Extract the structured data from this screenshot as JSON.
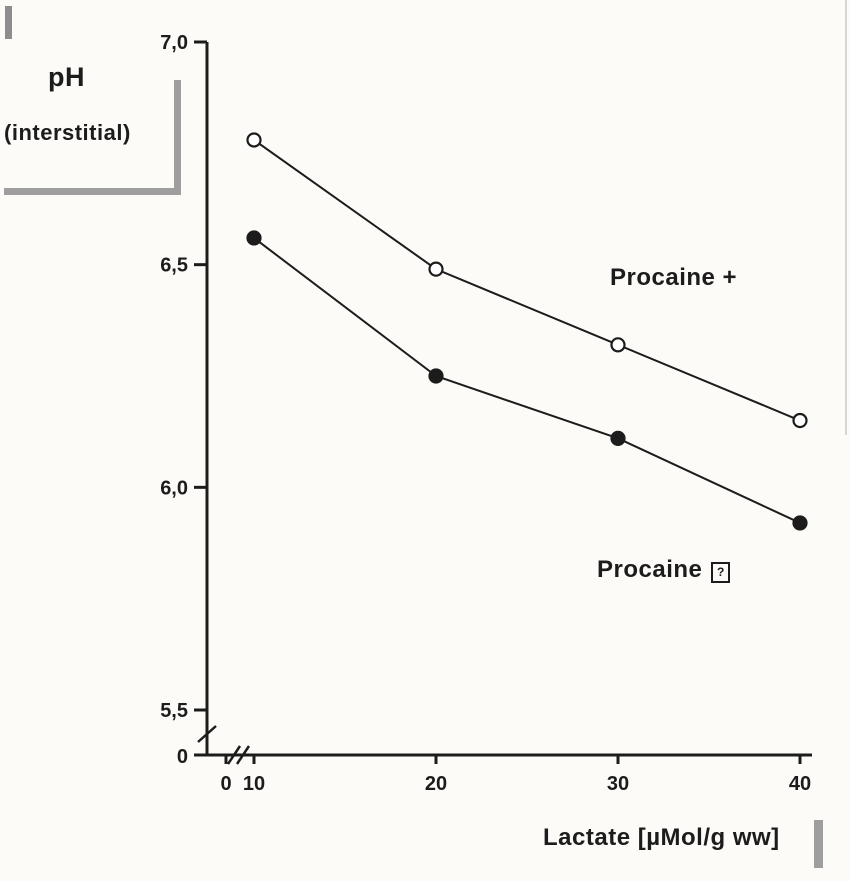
{
  "chart_data": {
    "type": "line",
    "title": "",
    "xlabel": "Lactate [µMol/g ww]",
    "ylabel_line1": "pH",
    "ylabel_line2": "(interstitial)",
    "xlim": [
      10,
      40
    ],
    "ylim": [
      5.5,
      7.0
    ],
    "x_ticks": [
      0,
      10,
      20,
      30,
      40
    ],
    "x_tick_labels": [
      "0",
      "10",
      "20",
      "30",
      "40"
    ],
    "y_ticks": [
      7.0,
      6.5,
      6.0,
      5.5
    ],
    "y_tick_labels": [
      "7,0",
      "6,5",
      "6,0",
      "5,5"
    ],
    "y_zero_label": "0",
    "axis_break_x": true,
    "axis_break_y": true,
    "grid": false,
    "legend": "inline-annotations",
    "series": [
      {
        "name": "Procaine +",
        "marker": "open-circle",
        "label_text": "Procaine +",
        "x": [
          10,
          20,
          30,
          40
        ],
        "y": [
          6.78,
          6.49,
          6.32,
          6.15
        ]
      },
      {
        "name": "Procaine",
        "marker": "filled-circle",
        "label_text": "Procaine",
        "label_glyph": "?",
        "x": [
          10,
          20,
          30,
          40
        ],
        "y": [
          6.56,
          6.25,
          6.11,
          5.92
        ]
      }
    ]
  },
  "colors": {
    "ink": "#1c1c1c",
    "gray_accent": "#9e9e9e",
    "background": "#fcfbf8"
  }
}
